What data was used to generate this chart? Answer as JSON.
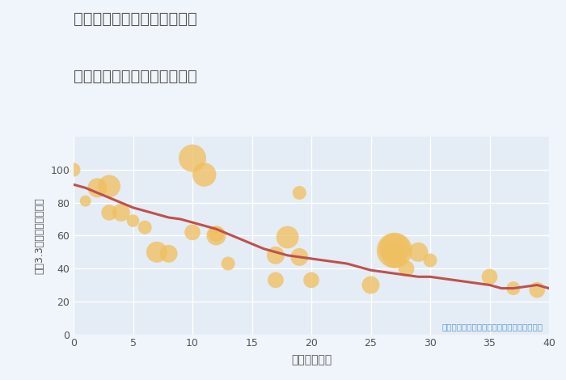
{
  "title_line1": "岐阜県加茂郡白川町水戸野の",
  "title_line2": "築年数別中古マンション価格",
  "xlabel": "築年数（年）",
  "ylabel": "坪（3.3㎡）単価（万円）",
  "annotation": "円の大きさは、取引のあった物件面積を示す",
  "fig_bg_color": "#f0f5fb",
  "plot_bg_color": "#e4ecf5",
  "scatter_color": "#f0c060",
  "line_color": "#c0504d",
  "title_color": "#555555",
  "annotation_color": "#5b9bd5",
  "grid_color": "#ffffff",
  "xlim": [
    0,
    40
  ],
  "ylim": [
    0,
    120
  ],
  "xticks": [
    0,
    5,
    10,
    15,
    20,
    25,
    30,
    35,
    40
  ],
  "yticks": [
    0,
    20,
    40,
    60,
    80,
    100
  ],
  "scatter_x": [
    0,
    1,
    2,
    3,
    3,
    4,
    5,
    6,
    7,
    8,
    10,
    10,
    11,
    12,
    12,
    13,
    17,
    17,
    18,
    19,
    19,
    20,
    25,
    27,
    27,
    27,
    28,
    29,
    30,
    35,
    37,
    39
  ],
  "scatter_y": [
    100,
    81,
    89,
    90,
    74,
    74,
    69,
    65,
    50,
    49,
    107,
    62,
    97,
    61,
    60,
    43,
    33,
    48,
    59,
    86,
    47,
    33,
    30,
    51,
    52,
    48,
    40,
    50,
    45,
    35,
    28,
    27
  ],
  "scatter_size": [
    30,
    20,
    60,
    80,
    40,
    50,
    25,
    30,
    70,
    50,
    120,
    40,
    90,
    40,
    60,
    30,
    40,
    50,
    80,
    30,
    50,
    40,
    50,
    200,
    150,
    100,
    40,
    60,
    30,
    40,
    30,
    40
  ],
  "line_x": [
    0,
    1,
    2,
    3,
    4,
    5,
    6,
    7,
    8,
    9,
    10,
    11,
    12,
    13,
    14,
    15,
    16,
    17,
    18,
    19,
    20,
    21,
    22,
    23,
    24,
    25,
    26,
    27,
    28,
    29,
    30,
    31,
    32,
    33,
    34,
    35,
    36,
    37,
    38,
    39,
    40
  ],
  "line_y": [
    91,
    89,
    86,
    83,
    80,
    77,
    75,
    73,
    71,
    70,
    68,
    66,
    64,
    61,
    58,
    55,
    52,
    50,
    48,
    47,
    46,
    45,
    44,
    43,
    41,
    39,
    38,
    37,
    36,
    35,
    35,
    34,
    33,
    32,
    31,
    30,
    28,
    28,
    29,
    30,
    28
  ]
}
